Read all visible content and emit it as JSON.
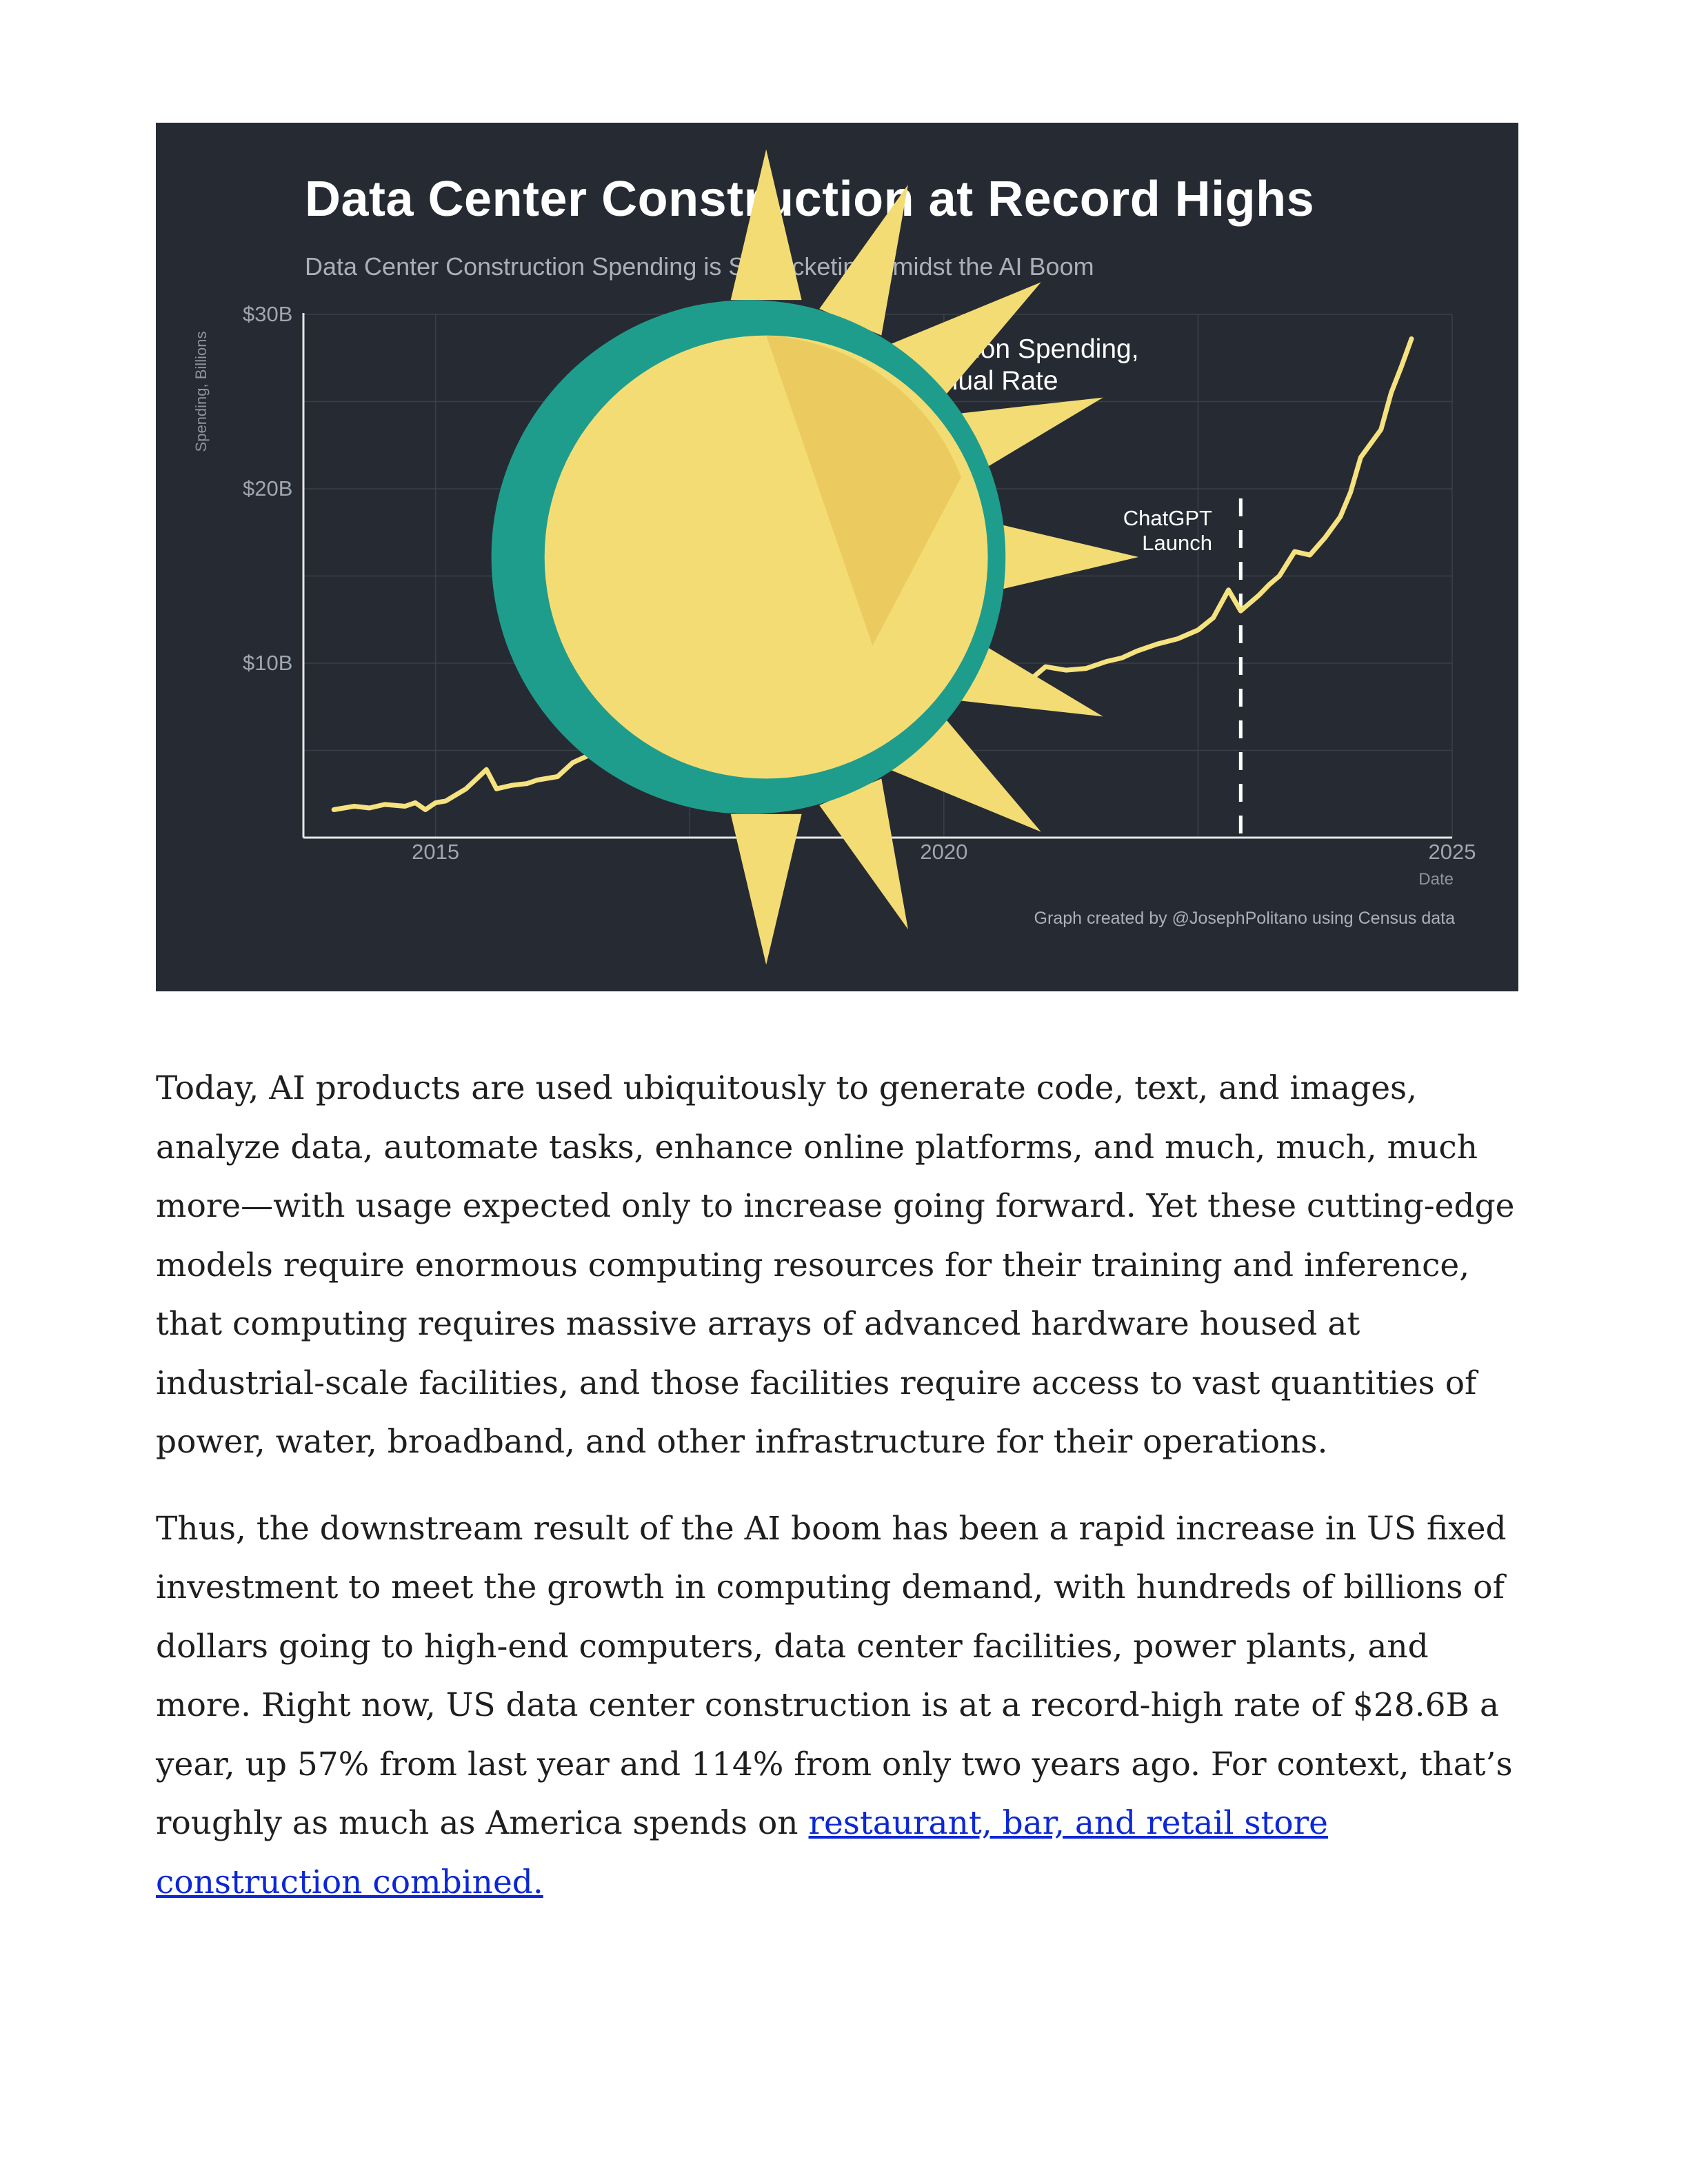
{
  "figure": {
    "title": "Data Center Construction at Record Highs",
    "subtitle": "Data Center Construction Spending is Skyrocketing Amidst the AI Boom",
    "credit": "Graph created by @JosephPolitano using Census data",
    "logo_icon": "sun-logo-icon",
    "background_color": "#262b33"
  },
  "chart_data": {
    "type": "line",
    "title": "Data Center Construction at Record Highs",
    "subtitle": "Data Center Construction Spending is Skyrocketing Amidst the AI Boom",
    "xlabel": "Date",
    "ylabel": "Spending, Billions",
    "xlim": [
      2013.7,
      2025.0
    ],
    "ylim": [
      0,
      30
    ],
    "x_ticks": [
      2015,
      2020,
      2025
    ],
    "x_tick_labels": [
      "2015",
      "2020",
      "2025"
    ],
    "y_ticks": [
      10,
      20,
      30
    ],
    "y_tick_labels": [
      "$10B",
      "$20B",
      "$30B"
    ],
    "grid": true,
    "legend_position": "top-center",
    "annotation": {
      "label": "ChatGPT\nLaunch",
      "x": 2022.92
    },
    "series": [
      {
        "name": "US Data Center Construction Spending,\nSeasonally Adjusted Annual Rate",
        "color": "#f6e27f",
        "x": [
          2014.0,
          2014.1,
          2014.2,
          2014.35,
          2014.5,
          2014.7,
          2014.8,
          2014.9,
          2015.0,
          2015.1,
          2015.3,
          2015.5,
          2015.6,
          2015.75,
          2015.9,
          2016.0,
          2016.2,
          2016.35,
          2016.5,
          2016.65,
          2016.8,
          2016.95,
          2017.1,
          2017.3,
          2017.5,
          2017.6,
          2017.75,
          2017.9,
          2018.0,
          2018.2,
          2018.4,
          2018.6,
          2018.8,
          2018.95,
          2019.05,
          2019.2,
          2019.35,
          2019.5,
          2019.7,
          2019.85,
          2020.0,
          2020.15,
          2020.3,
          2020.45,
          2020.6,
          2020.75,
          2020.9,
          2021.0,
          2021.2,
          2021.4,
          2021.6,
          2021.75,
          2021.9,
          2022.1,
          2022.3,
          2022.5,
          2022.65,
          2022.8,
          2022.92,
          2023.0,
          2023.1,
          2023.2,
          2023.3,
          2023.45,
          2023.6,
          2023.75,
          2023.9,
          2024.0,
          2024.1,
          2024.2,
          2024.3,
          2024.4,
          2024.5,
          2024.6
        ],
        "values": [
          1.6,
          1.7,
          1.8,
          1.7,
          1.9,
          1.8,
          2.0,
          1.6,
          2.0,
          2.1,
          2.8,
          3.9,
          2.8,
          3.0,
          3.1,
          3.3,
          3.5,
          4.3,
          4.7,
          4.4,
          5.0,
          4.3,
          4.8,
          4.9,
          4.3,
          5.1,
          4.7,
          4.9,
          5.4,
          5.9,
          6.5,
          6.7,
          7.1,
          7.5,
          6.9,
          7.3,
          7.1,
          8.2,
          8.5,
          8.1,
          8.3,
          9.1,
          8.8,
          9.6,
          9.3,
          8.5,
          9.3,
          9.8,
          9.6,
          9.7,
          10.1,
          10.3,
          10.7,
          11.1,
          11.4,
          11.9,
          12.6,
          14.2,
          13.0,
          13.4,
          13.9,
          14.5,
          15.0,
          16.4,
          16.2,
          17.2,
          18.4,
          19.8,
          21.8,
          22.6,
          23.4,
          25.5,
          27.0,
          28.6
        ]
      }
    ]
  },
  "article": {
    "paragraph_1": "Today, AI products are used ubiquitously to generate code, text, and images, analyze data, automate tasks, enhance online platforms, and much, much, much more—with usage expected only to increase going forward. Yet these cutting-edge models require enormous computing resources for their training and inference, that computing requires massive arrays of advanced hardware housed at industrial-scale facilities, and those facilities require access to vast quantities of power, water, broadband, and other infrastructure for their operations.",
    "paragraph_2_text": "Thus, the downstream result of the AI boom has been a rapid increase in US fixed investment to meet the growth in computing demand, with hundreds of billions of dollars going to high-end computers, data center facilities, power plants, and more. Right now, US data center construction is at a record-high rate of $28.6B a year, up 57% from last year and 114% from only two years ago. For context, that’s roughly as much as America spends on ",
    "paragraph_2_link": "restaurant, bar, and retail store construction combined.",
    "link_color": "#0b27d6"
  }
}
